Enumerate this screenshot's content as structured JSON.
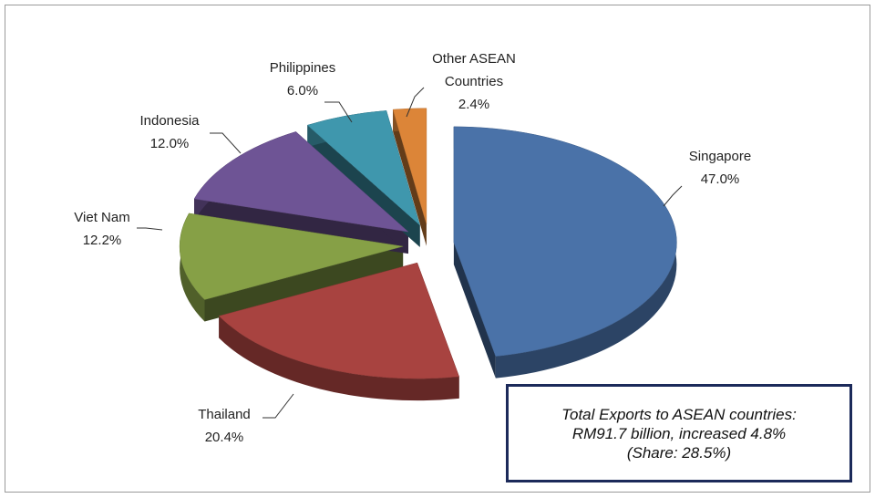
{
  "chart_data": {
    "type": "pie",
    "categories": [
      "Singapore",
      "Thailand",
      "Viet Nam",
      "Indonesia",
      "Philippines",
      "Other ASEAN Countries"
    ],
    "values": [
      47.0,
      20.4,
      12.2,
      12.0,
      6.0,
      2.4
    ],
    "value_labels": [
      "47.0%",
      "20.4%",
      "12.2%",
      "12.0%",
      "6.0%",
      "2.4%"
    ],
    "colors": [
      "#4a72a8",
      "#a84340",
      "#86a046",
      "#6e5495",
      "#3f97ad",
      "#dc8538"
    ],
    "annotation": [
      "Total Exports to ASEAN countries:",
      "RM91.7 billion, increased 4.8%",
      "(Share: 28.5%)"
    ]
  }
}
